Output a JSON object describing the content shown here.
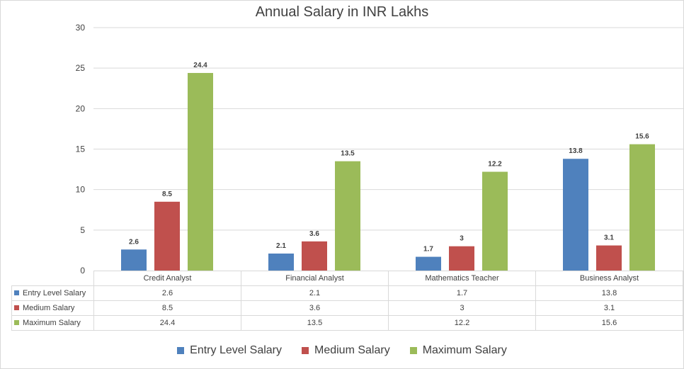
{
  "chart_data": {
    "type": "bar",
    "title": "Annual Salary in INR Lakhs",
    "categories": [
      "Credit Analyst",
      "Financial Analyst",
      "Mathematics Teacher",
      "Business Analyst"
    ],
    "series": [
      {
        "name": "Entry Level Salary",
        "color": "#4f81bd",
        "values": [
          2.6,
          2.1,
          1.7,
          13.8
        ]
      },
      {
        "name": "Medium Salary",
        "color": "#c0504d",
        "values": [
          8.5,
          3.6,
          3,
          3.1
        ]
      },
      {
        "name": "Maximum Salary",
        "color": "#9bbb59",
        "values": [
          24.4,
          13.5,
          12.2,
          15.6
        ]
      }
    ],
    "ylim": [
      0,
      30
    ],
    "yticks": [
      "0",
      "5",
      "10",
      "15",
      "20",
      "25",
      "30"
    ],
    "xlabel": "",
    "ylabel": "",
    "grid": true,
    "data_table": true,
    "legend_position": "bottom"
  }
}
